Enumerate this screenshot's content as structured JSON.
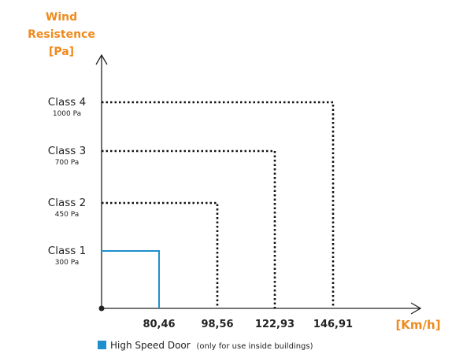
{
  "chart_data": {
    "type": "line",
    "title": "",
    "ylabel_lines": [
      "Wind",
      "Resistence",
      "[Pa]"
    ],
    "xlabel": "[Km/h]",
    "x_ticks": [
      "80,46",
      "98,56",
      "122,93",
      "146,91"
    ],
    "x_values": [
      80.46,
      98.56,
      122.93,
      146.91
    ],
    "y_ticks": [
      {
        "label": "Class 1",
        "sublabel": "300 Pa",
        "value": 300
      },
      {
        "label": "Class 2",
        "sublabel": "450 Pa",
        "value": 450
      },
      {
        "label": "Class 3",
        "sublabel": "700 Pa",
        "value": 700
      },
      {
        "label": "Class 4",
        "sublabel": "1000 Pa",
        "value": 1000
      }
    ],
    "series": [
      {
        "x": 80.46,
        "y": 300,
        "style": "solid",
        "color": "#1d8fce"
      },
      {
        "x": 98.56,
        "y": 450,
        "style": "dotted",
        "color": "#111111"
      },
      {
        "x": 122.93,
        "y": 700,
        "style": "dotted",
        "color": "#111111"
      },
      {
        "x": 146.91,
        "y": 1000,
        "style": "dotted",
        "color": "#111111"
      }
    ],
    "legend": {
      "label": "High Speed Door",
      "note": "(only for use inside buildings)",
      "color": "#1d8fce",
      "placement": "bottom"
    },
    "colors": {
      "axis_label": "#f08a1c",
      "axis": "#222222"
    }
  }
}
